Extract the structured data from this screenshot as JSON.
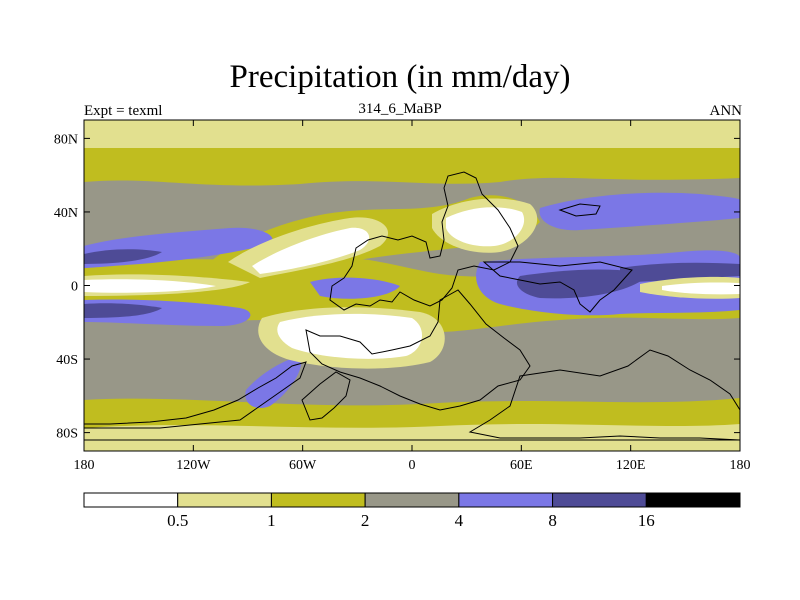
{
  "chart_data": {
    "type": "heatmap",
    "title": "Precipitation (in mm/day)",
    "subtitle": "314_6_MaBP",
    "left_label": "Expt = texml",
    "right_label": "ANN",
    "x_ticks": [
      "180",
      "120W",
      "60W",
      "0",
      "60E",
      "120E",
      "180"
    ],
    "y_ticks": [
      "80N",
      "40N",
      "0",
      "40S",
      "80S"
    ],
    "xlim": [
      -180,
      180
    ],
    "ylim": [
      -90,
      90
    ],
    "colorbar": {
      "levels": [
        "0.5",
        "1",
        "2",
        "4",
        "8",
        "16"
      ],
      "colors": [
        "#ffffff",
        "#e2e08f",
        "#c0bd1f",
        "#989788",
        "#7b77e6",
        "#4e4b96",
        "#000000"
      ]
    }
  }
}
